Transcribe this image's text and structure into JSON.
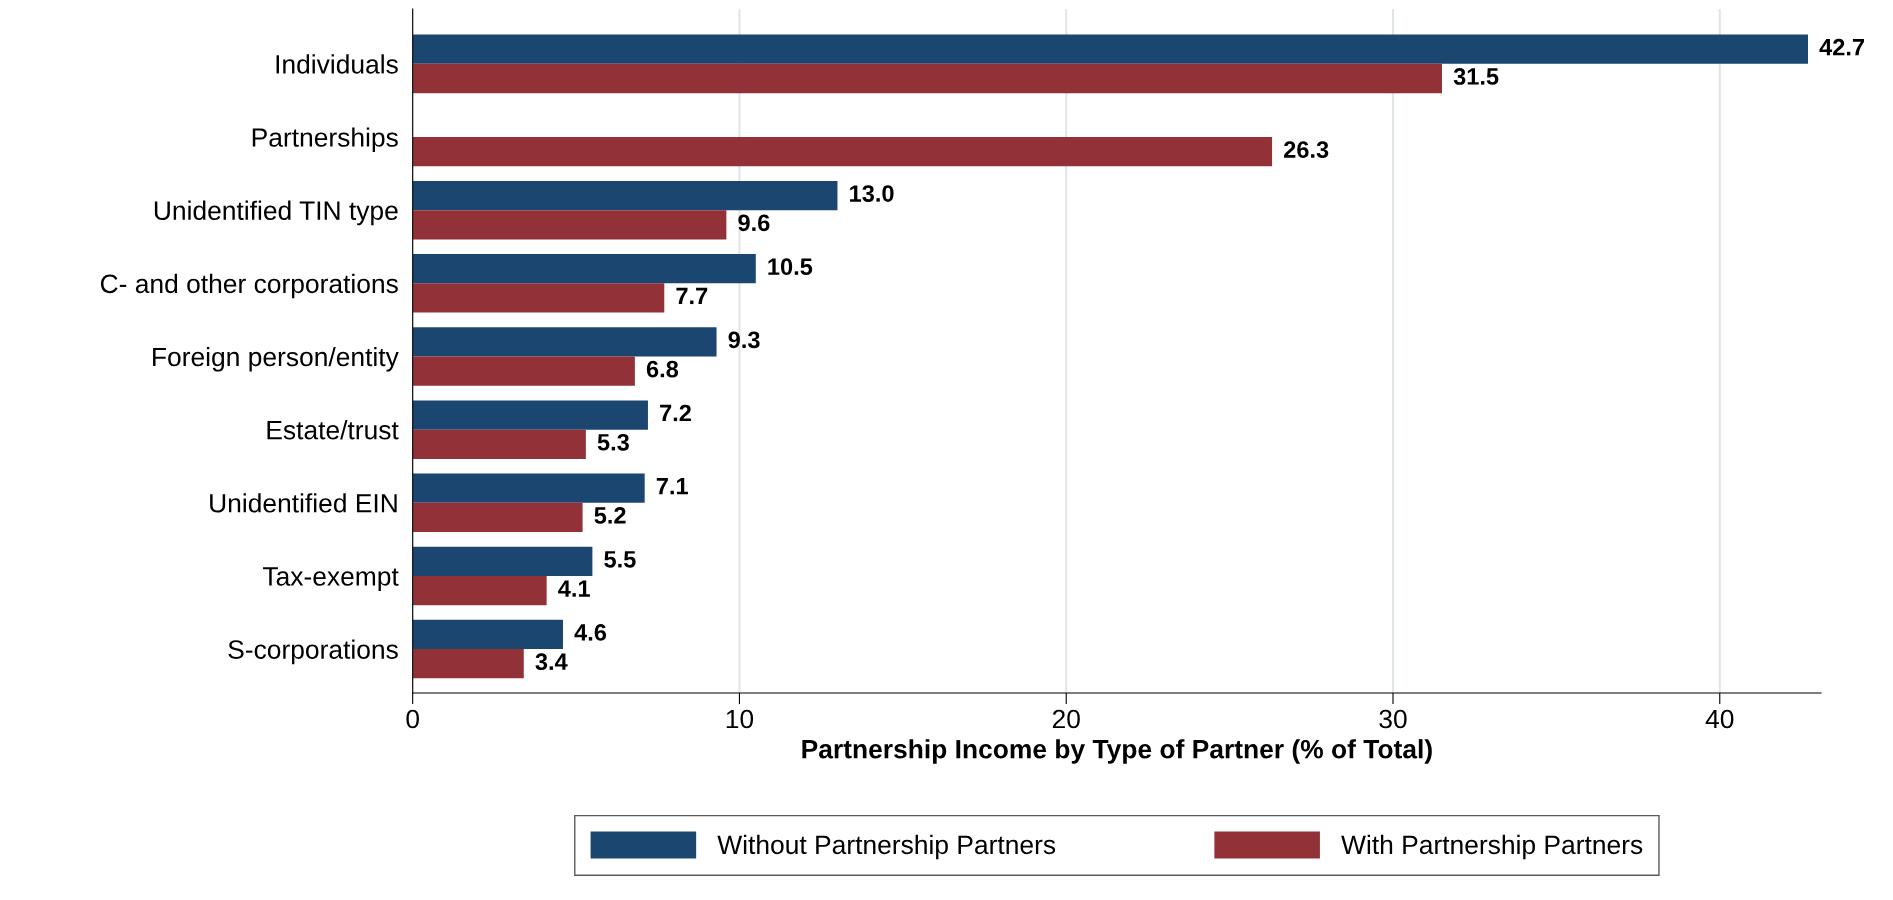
{
  "chart_data": {
    "type": "bar",
    "orientation": "horizontal",
    "xlabel": "Partnership Income by Type of Partner (% of Total)",
    "categories": [
      "Individuals",
      "Partnerships",
      "Unidentified TIN type",
      "C- and other corporations",
      "Foreign person/entity",
      "Estate/trust",
      "Unidentified EIN",
      "Tax-exempt",
      "S-corporations"
    ],
    "series": [
      {
        "name": "Without Partnership Partners",
        "color": "#1a4670",
        "values": [
          42.7,
          null,
          13.0,
          10.5,
          9.3,
          7.2,
          7.1,
          5.5,
          4.6
        ],
        "value_labels": [
          "42.7",
          null,
          "13.0",
          "10.5",
          "9.3",
          "7.2",
          "7.1",
          "5.5",
          "4.6"
        ]
      },
      {
        "name": "With Partnership Partners",
        "color": "#923238",
        "values": [
          31.5,
          26.3,
          9.6,
          7.7,
          6.8,
          5.3,
          5.2,
          4.1,
          3.4
        ],
        "value_labels": [
          "31.5",
          "26.3",
          "9.6",
          "7.7",
          "6.8",
          "5.3",
          "5.2",
          "4.1",
          "3.4"
        ]
      }
    ],
    "xlim": [
      0,
      43.1
    ],
    "xticks": [
      0,
      10,
      20,
      30,
      40
    ],
    "grid": "x",
    "legend": "bottom"
  }
}
